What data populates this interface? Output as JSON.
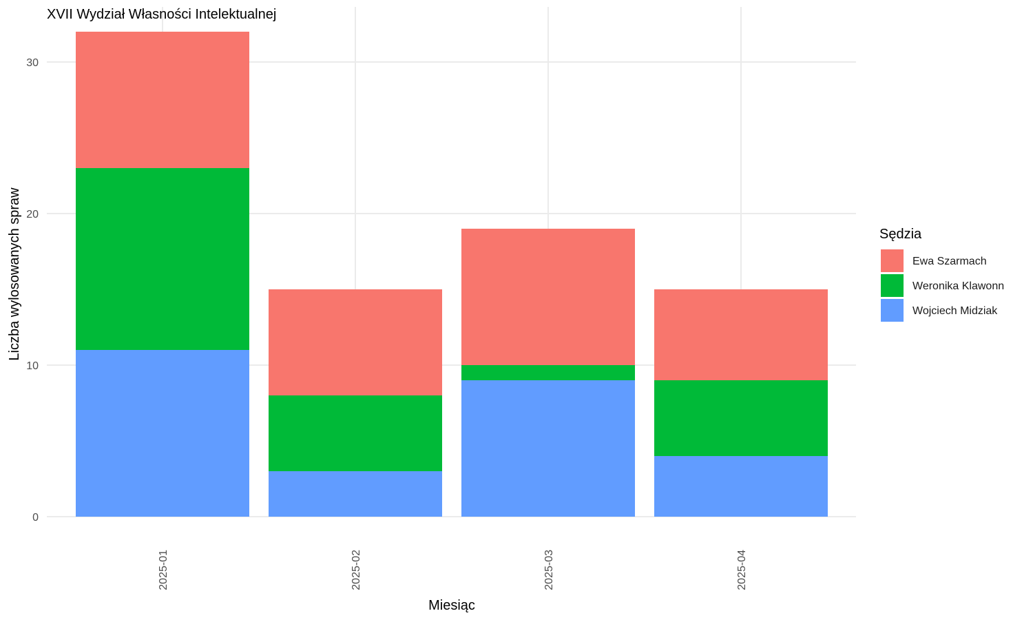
{
  "chart_data": {
    "type": "bar",
    "stacked": true,
    "title": "XVII Wydział Własności Intelektualnej",
    "xlabel": "Miesiąc",
    "ylabel": "Liczba wylosowanych spraw",
    "categories": [
      "2025-01",
      "2025-02",
      "2025-03",
      "2025-04"
    ],
    "ylim": [
      0,
      33
    ],
    "yticks": [
      0,
      10,
      20,
      30
    ],
    "grid": true,
    "legend": {
      "title": "Sędzia",
      "placement": "right"
    },
    "series": [
      {
        "name": "Wojciech Midziak",
        "color": "#619CFF",
        "values": [
          11,
          3,
          9,
          4
        ]
      },
      {
        "name": "Weronika Klawonn",
        "color": "#00BA38",
        "values": [
          12,
          5,
          1,
          5
        ]
      },
      {
        "name": "Ewa Szarmach",
        "color": "#F8766D",
        "values": [
          9,
          7,
          9,
          6
        ]
      }
    ],
    "legend_order": [
      "Ewa Szarmach",
      "Weronika Klawonn",
      "Wojciech Midziak"
    ]
  }
}
